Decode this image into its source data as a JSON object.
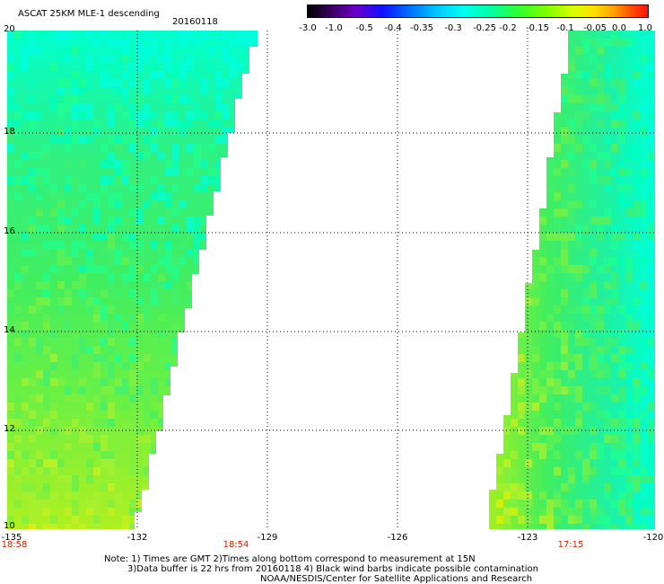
{
  "header": {
    "title": "ASCAT 25KM MLE-1 descending",
    "date": "20160118"
  },
  "colorbar": {
    "labels": [
      "-3.0",
      "-1.0",
      "-0.5",
      "-0.4",
      "-0.35",
      "-0.3",
      "-0.25",
      "-0.2",
      "-0.15",
      "-0.1",
      "-0.05",
      "0.0",
      "1.0"
    ]
  },
  "axes": {
    "lat_labels": [
      "20",
      "18",
      "16",
      "14",
      "12",
      "10"
    ],
    "lon_labels": [
      "-135",
      "-132",
      "-129",
      "-126",
      "-123",
      "-120"
    ],
    "time_labels": [
      "18:58",
      "18:54",
      "17:15"
    ]
  },
  "notes": {
    "line1": "Note: 1) Times are GMT 2)Times along bottom correspond to measurement at 15N",
    "line2": "3)Data buffer is 22 hrs from 20160118 4) Black wind barbs indicate possible contamination",
    "line3": "NOAA/NESDIS/Center for Satellite Applications and Research"
  },
  "colors": {
    "background": "#ffffff",
    "grid": "#000000",
    "time_label": "#cc2200"
  }
}
